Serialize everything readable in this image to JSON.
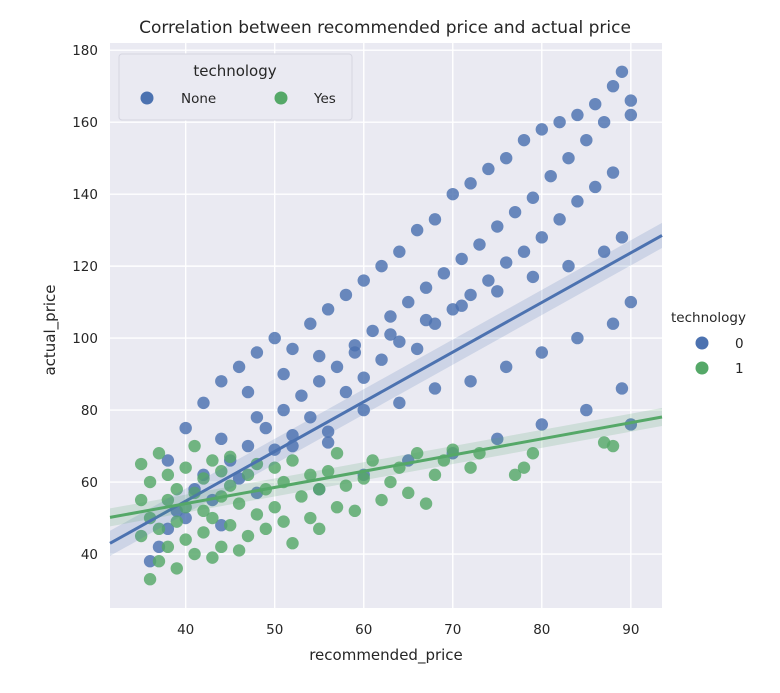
{
  "chart_data": {
    "type": "scatter",
    "title": "Correlation between recommended price and actual price",
    "xlabel": "recommended_price",
    "ylabel": "actual_price",
    "xlim": [
      31.5,
      93.5
    ],
    "ylim": [
      25,
      182
    ],
    "xticks": [
      40,
      50,
      60,
      70,
      80,
      90
    ],
    "yticks": [
      40,
      60,
      80,
      100,
      120,
      140,
      160,
      180
    ],
    "grid": true,
    "inner_legend": {
      "title": "technology",
      "placement": "top-left",
      "entries": [
        {
          "label": "None",
          "color": "#4c72b0"
        },
        {
          "label": "Yes",
          "color": "#55a868"
        }
      ]
    },
    "outer_legend": {
      "title": "technology",
      "placement": "right",
      "entries": [
        {
          "label": "0",
          "color": "#4c72b0"
        },
        {
          "label": "1",
          "color": "#55a868"
        }
      ]
    },
    "series": [
      {
        "name": "0",
        "color": "#4c72b0",
        "regression": {
          "slope": 1.38,
          "intercept": -0.5,
          "x_range": [
            31.5,
            93.5
          ]
        },
        "points": [
          [
            36,
            38
          ],
          [
            37,
            42
          ],
          [
            38,
            47
          ],
          [
            39,
            52
          ],
          [
            40,
            50
          ],
          [
            41,
            58
          ],
          [
            42,
            62
          ],
          [
            43,
            55
          ],
          [
            44,
            48
          ],
          [
            45,
            66
          ],
          [
            46,
            61
          ],
          [
            47,
            70
          ],
          [
            48,
            57
          ],
          [
            49,
            75
          ],
          [
            50,
            69
          ],
          [
            51,
            80
          ],
          [
            52,
            73
          ],
          [
            53,
            84
          ],
          [
            54,
            78
          ],
          [
            55,
            88
          ],
          [
            56,
            71
          ],
          [
            57,
            92
          ],
          [
            58,
            85
          ],
          [
            59,
            96
          ],
          [
            60,
            89
          ],
          [
            61,
            102
          ],
          [
            62,
            94
          ],
          [
            63,
            106
          ],
          [
            64,
            99
          ],
          [
            65,
            110
          ],
          [
            66,
            97
          ],
          [
            67,
            114
          ],
          [
            68,
            104
          ],
          [
            69,
            118
          ],
          [
            70,
            108
          ],
          [
            71,
            122
          ],
          [
            72,
            112
          ],
          [
            73,
            126
          ],
          [
            74,
            116
          ],
          [
            75,
            131
          ],
          [
            76,
            121
          ],
          [
            77,
            135
          ],
          [
            78,
            124
          ],
          [
            79,
            139
          ],
          [
            80,
            128
          ],
          [
            81,
            145
          ],
          [
            82,
            133
          ],
          [
            83,
            150
          ],
          [
            84,
            138
          ],
          [
            85,
            155
          ],
          [
            86,
            142
          ],
          [
            87,
            160
          ],
          [
            88,
            146
          ],
          [
            89,
            174
          ],
          [
            90,
            166
          ],
          [
            38,
            66
          ],
          [
            40,
            75
          ],
          [
            42,
            82
          ],
          [
            44,
            88
          ],
          [
            46,
            92
          ],
          [
            48,
            96
          ],
          [
            50,
            100
          ],
          [
            52,
            97
          ],
          [
            54,
            104
          ],
          [
            56,
            108
          ],
          [
            58,
            112
          ],
          [
            60,
            116
          ],
          [
            62,
            120
          ],
          [
            64,
            124
          ],
          [
            66,
            130
          ],
          [
            68,
            133
          ],
          [
            70,
            140
          ],
          [
            72,
            143
          ],
          [
            74,
            147
          ],
          [
            76,
            150
          ],
          [
            78,
            155
          ],
          [
            80,
            158
          ],
          [
            82,
            160
          ],
          [
            84,
            162
          ],
          [
            86,
            165
          ],
          [
            88,
            170
          ],
          [
            90,
            162
          ],
          [
            44,
            72
          ],
          [
            48,
            78
          ],
          [
            52,
            70
          ],
          [
            56,
            74
          ],
          [
            60,
            80
          ],
          [
            64,
            82
          ],
          [
            68,
            86
          ],
          [
            72,
            88
          ],
          [
            76,
            92
          ],
          [
            80,
            96
          ],
          [
            84,
            100
          ],
          [
            88,
            104
          ],
          [
            90,
            110
          ],
          [
            55,
            58
          ],
          [
            60,
            62
          ],
          [
            65,
            66
          ],
          [
            70,
            68
          ],
          [
            75,
            72
          ],
          [
            80,
            76
          ],
          [
            85,
            80
          ],
          [
            89,
            86
          ],
          [
            90,
            76
          ],
          [
            47,
            85
          ],
          [
            51,
            90
          ],
          [
            55,
            95
          ],
          [
            59,
            98
          ],
          [
            63,
            101
          ],
          [
            67,
            105
          ],
          [
            71,
            109
          ],
          [
            75,
            113
          ],
          [
            79,
            117
          ],
          [
            83,
            120
          ],
          [
            87,
            124
          ],
          [
            89,
            128
          ]
        ]
      },
      {
        "name": "1",
        "color": "#55a868",
        "regression": {
          "slope": 0.45,
          "intercept": 36.0,
          "x_range": [
            31.5,
            93.5
          ]
        },
        "points": [
          [
            35,
            45
          ],
          [
            35,
            55
          ],
          [
            35,
            65
          ],
          [
            36,
            33
          ],
          [
            36,
            50
          ],
          [
            36,
            60
          ],
          [
            37,
            38
          ],
          [
            37,
            47
          ],
          [
            37,
            68
          ],
          [
            38,
            42
          ],
          [
            38,
            55
          ],
          [
            38,
            62
          ],
          [
            39,
            36
          ],
          [
            39,
            49
          ],
          [
            39,
            58
          ],
          [
            40,
            44
          ],
          [
            40,
            53
          ],
          [
            40,
            64
          ],
          [
            41,
            40
          ],
          [
            41,
            57
          ],
          [
            41,
            70
          ],
          [
            42,
            46
          ],
          [
            42,
            61
          ],
          [
            42,
            52
          ],
          [
            43,
            39
          ],
          [
            43,
            50
          ],
          [
            43,
            66
          ],
          [
            44,
            42
          ],
          [
            44,
            56
          ],
          [
            44,
            63
          ],
          [
            45,
            48
          ],
          [
            45,
            59
          ],
          [
            45,
            67
          ],
          [
            46,
            41
          ],
          [
            46,
            54
          ],
          [
            47,
            45
          ],
          [
            47,
            62
          ],
          [
            48,
            51
          ],
          [
            48,
            65
          ],
          [
            49,
            47
          ],
          [
            49,
            58
          ],
          [
            50,
            53
          ],
          [
            50,
            64
          ],
          [
            51,
            49
          ],
          [
            51,
            60
          ],
          [
            52,
            43
          ],
          [
            52,
            66
          ],
          [
            53,
            56
          ],
          [
            54,
            50
          ],
          [
            54,
            62
          ],
          [
            55,
            47
          ],
          [
            55,
            58
          ],
          [
            56,
            63
          ],
          [
            57,
            53
          ],
          [
            57,
            68
          ],
          [
            58,
            59
          ],
          [
            59,
            52
          ],
          [
            60,
            61
          ],
          [
            61,
            66
          ],
          [
            62,
            55
          ],
          [
            63,
            60
          ],
          [
            64,
            64
          ],
          [
            65,
            57
          ],
          [
            66,
            68
          ],
          [
            67,
            54
          ],
          [
            68,
            62
          ],
          [
            69,
            66
          ],
          [
            70,
            69
          ],
          [
            72,
            64
          ],
          [
            73,
            68
          ],
          [
            77,
            62
          ],
          [
            78,
            64
          ],
          [
            79,
            68
          ],
          [
            87,
            71
          ],
          [
            88,
            70
          ]
        ]
      }
    ]
  }
}
